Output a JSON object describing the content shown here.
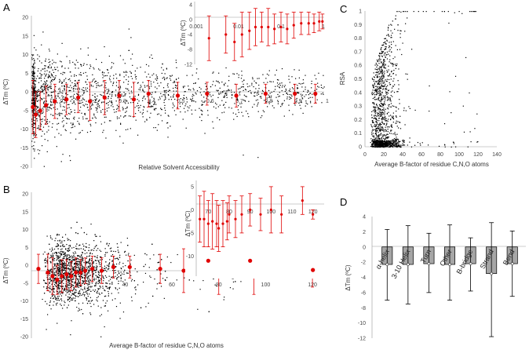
{
  "chart_data": [
    {
      "panel_label": "A",
      "type": "scatter",
      "xlabel": "Relative Solvent Accessibility",
      "ylabel": "ΔTm (ºC)",
      "xlim": [
        0,
        1
      ],
      "ylim": [
        -20,
        20
      ],
      "y_ticks": [
        "20",
        "15",
        "10",
        "5",
        "0",
        "-5",
        "-10",
        "-15",
        "-20"
      ],
      "x_ticks": [
        "0.1",
        "0.2",
        "0.3",
        "0.4",
        "0.5",
        "0.6",
        "0.7",
        "0.8",
        "0.9",
        "1"
      ],
      "scatter_points": 1800,
      "scatter_color": "#000000",
      "means": {
        "color": "#e00000",
        "x": [
          0.005,
          0.015,
          0.03,
          0.05,
          0.08,
          0.12,
          0.16,
          0.2,
          0.25,
          0.3,
          0.35,
          0.4,
          0.5,
          0.6,
          0.7,
          0.8,
          0.9,
          0.97
        ],
        "y": [
          -4,
          -6,
          -5,
          -3.5,
          -2.5,
          -2,
          -1.5,
          -2.5,
          -1.5,
          -1,
          -2,
          -0.5,
          -1,
          -0.5,
          -1,
          -0.5,
          -0.5,
          -0.5
        ],
        "err": [
          7,
          6,
          5,
          5,
          4.5,
          4,
          4,
          5,
          4.5,
          4,
          4.5,
          3.5,
          3.5,
          3,
          3,
          2.5,
          2.5,
          2.5
        ]
      },
      "inset": {
        "xscale": "log",
        "xlim": [
          0.001,
          1
        ],
        "ylim": [
          -12,
          4
        ],
        "x_ticks": [
          "0.001",
          "0.01",
          "0.1",
          "1"
        ],
        "y_ticks": [
          "4",
          "0",
          "-4",
          "-8",
          "-12"
        ],
        "ylabel": "ΔTm (ºC)",
        "x": [
          0.002,
          0.005,
          0.008,
          0.012,
          0.018,
          0.025,
          0.035,
          0.05,
          0.07,
          0.1,
          0.14,
          0.2,
          0.3,
          0.45,
          0.6,
          0.8,
          0.95
        ],
        "y": [
          -5,
          -4,
          -6,
          -4,
          -3,
          -2,
          -2,
          -2,
          -2.5,
          -2,
          -2.5,
          -1.5,
          -1,
          -1,
          -1,
          -0.5,
          -0.5
        ],
        "err": [
          6,
          5,
          5,
          6,
          5,
          5,
          4,
          5,
          4,
          4,
          4,
          3.5,
          3,
          3,
          2.5,
          2.5,
          2
        ]
      }
    },
    {
      "panel_label": "B",
      "type": "scatter",
      "xlabel": "Average B-factor of residue C,N,O atoms",
      "ylabel": "ΔTm (ºC)",
      "xlim": [
        0,
        125
      ],
      "ylim": [
        -20,
        20
      ],
      "y_ticks": [
        "20",
        "15",
        "10",
        "5",
        "0",
        "-5",
        "-10",
        "-15",
        "-20"
      ],
      "x_ticks": [
        "20",
        "40",
        "60",
        "80",
        "100",
        "120"
      ],
      "scatter_points": 1800,
      "scatter_color": "#000000",
      "means": {
        "color": "#e00000",
        "x": [
          3,
          7,
          9,
          11,
          13,
          15,
          17,
          19,
          21,
          23,
          26,
          30,
          35,
          42,
          55,
          65,
          80,
          95,
          120
        ],
        "y": [
          -1,
          -2,
          -3,
          -4,
          -3,
          -2.5,
          -3,
          -2,
          -2,
          -1.5,
          -1,
          -1.5,
          -0.5,
          -0.5,
          -1,
          -1.5,
          -1,
          -3,
          -2
        ],
        "err": [
          4,
          5,
          5,
          4,
          4.5,
          4,
          4,
          4,
          3.5,
          3.5,
          3.5,
          3.5,
          3,
          3,
          4,
          6,
          7,
          5,
          4
        ]
      },
      "inset": {
        "xlim": [
          65,
          125
        ],
        "ylim": [
          -14,
          6
        ],
        "x_ticks": [
          "70",
          "80",
          "90",
          "100",
          "110",
          "120"
        ],
        "y_ticks": [
          "5",
          "0",
          "-5",
          "-10"
        ],
        "ylabel": "ΔTm (ºC)",
        "x": [
          66,
          68,
          70,
          72,
          74,
          75,
          77,
          79,
          80,
          83,
          86,
          90,
          95,
          100,
          105,
          115,
          120
        ],
        "y": [
          -2,
          -2,
          -3,
          -2.5,
          -3,
          -4,
          -3,
          -2.5,
          -1,
          -2,
          -1,
          0,
          -1,
          0,
          -1,
          2,
          -1
        ],
        "err": [
          5,
          6,
          5,
          6,
          5,
          5,
          5,
          4,
          4,
          4,
          4,
          3.5,
          3.5,
          5,
          4,
          3,
          1
        ],
        "outliers_x": [
          70,
          90,
          120
        ],
        "outliers_y": [
          -11,
          -11,
          -13
        ]
      }
    },
    {
      "panel_label": "C",
      "type": "scatter",
      "xlabel": "Average B-factor of residue C,N,O atoms",
      "ylabel": "RSA",
      "xlim": [
        0,
        140
      ],
      "ylim": [
        0,
        1
      ],
      "x_ticks": [
        "0",
        "20",
        "40",
        "60",
        "80",
        "100",
        "120",
        "140"
      ],
      "y_ticks": [
        "0",
        "0.1",
        "0.2",
        "0.3",
        "0.4",
        "0.5",
        "0.6",
        "0.7",
        "0.8",
        "0.9",
        "1"
      ],
      "scatter_points": 1400,
      "scatter_color": "#000000"
    },
    {
      "panel_label": "D",
      "type": "bar",
      "ylabel": "ΔTm (ºC)",
      "ylim": [
        -12,
        4
      ],
      "y_ticks": [
        "4",
        "2",
        "0",
        "-2",
        "-4",
        "-6",
        "-8",
        "-10",
        "-12"
      ],
      "categories": [
        "α-helix",
        "3-10 Helix",
        "Turn",
        "Other",
        "B-bridge",
        "Strand",
        "Bend"
      ],
      "values": [
        -2.3,
        -2.3,
        -2.2,
        -2.3,
        -2.2,
        -3.5,
        -2.2
      ],
      "err_low": [
        -7,
        -7.5,
        -6,
        -7,
        -5.8,
        -11.8,
        -6.5
      ],
      "err_high": [
        2.3,
        2.8,
        1.8,
        2.9,
        1.2,
        3.2,
        2.1
      ],
      "bar_color": "#a6a6a6",
      "bar_edge": "#000000"
    }
  ]
}
